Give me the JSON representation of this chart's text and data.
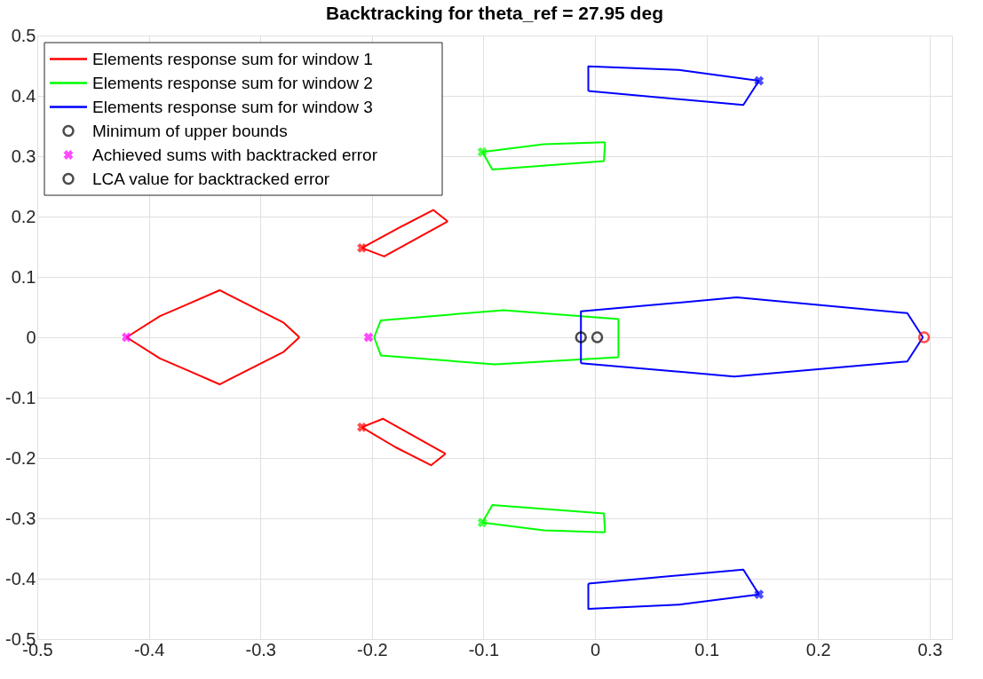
{
  "chart_data": {
    "type": "line",
    "title": "Backtracking for theta_ref = 27.95 deg",
    "xlim": [
      -0.5,
      0.32
    ],
    "ylim": [
      -0.5,
      0.5
    ],
    "xticks": [
      -0.5,
      -0.4,
      -0.3,
      -0.2,
      -0.1,
      0,
      0.1,
      0.2,
      0.3
    ],
    "yticks": [
      -0.5,
      -0.4,
      -0.3,
      -0.2,
      -0.1,
      0,
      0.1,
      0.2,
      0.3,
      0.4,
      0.5
    ],
    "grid": true,
    "legend": "top left",
    "line_style": "solid",
    "series": [
      {
        "name": "Elements response sum for window 1",
        "color": "#ff0000",
        "x": [
          -0.42,
          -0.39,
          -0.365,
          -0.3365,
          -0.279,
          -0.265
        ],
        "values": [
          0,
          0.035,
          0.055,
          0.078,
          0.024,
          0
        ]
      },
      {
        "color": "#ff0000",
        "x": [
          -0.42,
          -0.39,
          -0.365,
          -0.3365,
          -0.279,
          -0.265
        ],
        "values": [
          0,
          -0.035,
          -0.055,
          -0.078,
          -0.024,
          0
        ]
      },
      {
        "color": "#ff0000",
        "x": [
          -0.209,
          -0.189,
          -0.132
        ],
        "values": [
          0.148,
          0.134,
          0.192
        ]
      },
      {
        "color": "#ff0000",
        "x": [
          -0.209,
          -0.175,
          -0.145,
          -0.132
        ],
        "values": [
          0.148,
          0.182,
          0.211,
          0.192
        ]
      },
      {
        "color": "#ff0000",
        "x": [
          -0.209,
          -0.19,
          -0.134
        ],
        "values": [
          -0.149,
          -0.135,
          -0.193
        ]
      },
      {
        "color": "#ff0000",
        "x": [
          -0.209,
          -0.179,
          -0.147,
          -0.134
        ],
        "values": [
          -0.149,
          -0.182,
          -0.212,
          -0.193
        ]
      },
      {
        "name": "Elements response sum for window 2",
        "color": "#00ff00",
        "x": [
          -0.198,
          -0.192,
          -0.082,
          0.021,
          0.021
        ],
        "values": [
          0,
          0.028,
          0.045,
          0.03,
          -0.033
        ]
      },
      {
        "color": "#00ff00",
        "x": [
          -0.198,
          -0.192,
          -0.09,
          0.021
        ],
        "values": [
          0,
          -0.03,
          -0.045,
          -0.033
        ]
      },
      {
        "color": "#00ff00",
        "x": [
          -0.101,
          -0.092,
          0.008,
          0.009
        ],
        "values": [
          0.307,
          0.278,
          0.292,
          0.323
        ]
      },
      {
        "color": "#00ff00",
        "x": [
          -0.101,
          -0.046,
          0.009
        ],
        "values": [
          0.307,
          0.32,
          0.323
        ]
      },
      {
        "color": "#00ff00",
        "x": [
          -0.101,
          -0.092,
          0.008,
          0.009
        ],
        "values": [
          -0.307,
          -0.278,
          -0.292,
          -0.323
        ]
      },
      {
        "color": "#00ff00",
        "x": [
          -0.101,
          -0.046,
          0.009
        ],
        "values": [
          -0.307,
          -0.32,
          -0.323
        ]
      },
      {
        "name": "Elements response sum for window 3",
        "color": "#0000ff",
        "x": [
          -0.0126,
          -0.0126,
          0.127,
          0.28,
          0.294
        ],
        "values": [
          -0.043,
          0.043,
          0.066,
          0.04,
          0
        ]
      },
      {
        "color": "#0000ff",
        "x": [
          -0.0126,
          0.125,
          0.28,
          0.294
        ],
        "values": [
          -0.043,
          -0.065,
          -0.04,
          0
        ]
      },
      {
        "color": "#0000ff",
        "x": [
          -0.006,
          0.133,
          0.147
        ],
        "values": [
          0.408,
          0.385,
          0.425
        ]
      },
      {
        "color": "#0000ff",
        "x": [
          -0.006,
          -0.006,
          0.075,
          0.147
        ],
        "values": [
          0.408,
          0.449,
          0.443,
          0.425
        ]
      },
      {
        "color": "#0000ff",
        "x": [
          -0.006,
          0.133,
          0.147
        ],
        "values": [
          -0.408,
          -0.385,
          -0.426
        ]
      },
      {
        "color": "#0000ff",
        "x": [
          -0.006,
          -0.006,
          0.075,
          0.147
        ],
        "values": [
          -0.408,
          -0.45,
          -0.443,
          -0.426
        ]
      },
      {
        "type": "scatter",
        "marker": "cross",
        "color": "#ff0000",
        "x": [
          -0.209,
          -0.209
        ],
        "values": [
          0.148,
          -0.149
        ]
      },
      {
        "type": "scatter",
        "marker": "cross",
        "color": "#00ff00",
        "x": [
          -0.101,
          -0.101
        ],
        "values": [
          0.307,
          -0.307
        ]
      },
      {
        "type": "scatter",
        "marker": "cross",
        "color": "#0000ff",
        "x": [
          0.147,
          0.147
        ],
        "values": [
          0.425,
          -0.426
        ]
      },
      {
        "type": "scatter",
        "marker": "circle",
        "color": "#ff0000",
        "x": [
          0.295
        ],
        "values": [
          0
        ]
      },
      {
        "name": "Minimum of upper bounds",
        "type": "scatter",
        "marker": "circle",
        "color": "#000000",
        "x": [
          0.002
        ],
        "values": [
          0
        ]
      },
      {
        "name": "Achieved sums with backtracked error",
        "type": "scatter",
        "marker": "cross",
        "color": "#ff00ff",
        "x": [
          -0.42,
          -0.203
        ],
        "values": [
          0,
          0
        ]
      },
      {
        "name": "LCA value for backtracked error",
        "type": "scatter",
        "marker": "circle",
        "color": "#000000",
        "x": [
          -0.0126
        ],
        "values": [
          0
        ]
      }
    ]
  }
}
